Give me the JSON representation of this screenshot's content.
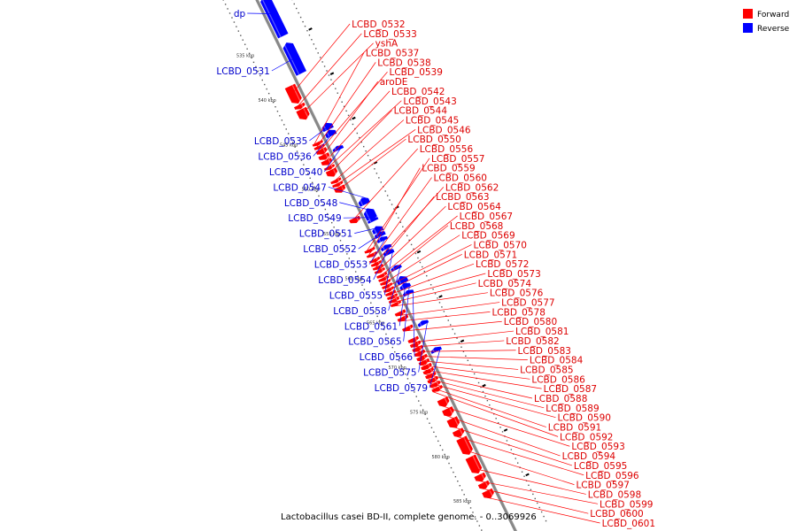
{
  "caption": "Lactobacillus casei BD-II, complete genome. - 0..3069926",
  "legend": [
    {
      "label": "Forward",
      "color": "#ff0000"
    },
    {
      "label": "Reverse",
      "color": "#0000ff"
    }
  ],
  "colors": {
    "forward": "#ff0000",
    "reverse": "#0000ff",
    "backbone": "#888888"
  },
  "kbp_ticks": [
    {
      "label": "535 kbp",
      "kb": 535
    },
    {
      "label": "540 kbp",
      "kb": 540
    },
    {
      "label": "545 kbp",
      "kb": 545
    },
    {
      "label": "550 kbp",
      "kb": 550
    },
    {
      "label": "555 kbp",
      "kb": 555
    },
    {
      "label": "560 kbp",
      "kb": 560
    },
    {
      "label": "565 kbp",
      "kb": 565
    },
    {
      "label": "570 kbp",
      "kb": 570
    },
    {
      "label": "575 kbp",
      "kb": 575
    },
    {
      "label": "580 kbp",
      "kb": 580
    },
    {
      "label": "585 kbp",
      "kb": 585
    }
  ],
  "reverse_genes": [
    {
      "name": "dp",
      "start": 530.0,
      "end": 534.4
    },
    {
      "name": "LCBD_0531",
      "start": 535.2,
      "end": 538.6
    },
    {
      "name": "LCBD_0535",
      "start": 544.2,
      "end": 544.9
    },
    {
      "name": "LCBD_0536",
      "start": 545.0,
      "end": 545.6
    },
    {
      "name": "LCBD_0540",
      "start": 546.8,
      "end": 547.2
    },
    {
      "name": "LCBD_0547",
      "start": 552.6,
      "end": 553.3
    },
    {
      "name": "LCBD_0548",
      "start": 553.8,
      "end": 554.9
    },
    {
      "name": "LCBD_0549",
      "start": 554.9,
      "end": 555.2
    },
    {
      "name": "LCBD_0551",
      "start": 555.8,
      "end": 556.4
    },
    {
      "name": "LCBD_0552",
      "start": 556.4,
      "end": 556.9
    },
    {
      "name": "LCBD_0553",
      "start": 557.0,
      "end": 557.4
    },
    {
      "name": "LCBD_0554",
      "start": 557.9,
      "end": 558.3
    },
    {
      "name": "LCBD_0555",
      "start": 558.4,
      "end": 558.9
    },
    {
      "name": "LCBD_0558",
      "start": 560.2,
      "end": 560.6
    },
    {
      "name": "LCBD_0561",
      "start": 561.4,
      "end": 562.1
    },
    {
      "name": "LCBD_0565",
      "start": 562.2,
      "end": 562.7
    },
    {
      "name": "LCBD_0566",
      "start": 563.0,
      "end": 563.4
    },
    {
      "name": "LCBD_0575",
      "start": 566.4,
      "end": 566.8
    },
    {
      "name": "LCBD_0579",
      "start": 569.4,
      "end": 569.8
    }
  ],
  "forward_genes": [
    {
      "name": "LCBD_0532",
      "start": 539.3,
      "end": 541.2
    },
    {
      "name": "LCBD_0533",
      "start": 541.4,
      "end": 541.8
    },
    {
      "name": "yshA",
      "start": 541.9,
      "end": 543.0
    },
    {
      "name": "LCBD_0537",
      "start": 545.6,
      "end": 545.9
    },
    {
      "name": "LCBD_0538",
      "start": 546.0,
      "end": 546.3
    },
    {
      "name": "LCBD_0539",
      "start": 546.4,
      "end": 546.9
    },
    {
      "name": "aroDE",
      "start": 547.0,
      "end": 547.5
    },
    {
      "name": "LCBD_0542",
      "start": 547.6,
      "end": 548.1
    },
    {
      "name": "LCBD_0543",
      "start": 548.3,
      "end": 548.6
    },
    {
      "name": "LCBD_0544",
      "start": 548.7,
      "end": 549.4
    },
    {
      "name": "LCBD_0545",
      "start": 549.8,
      "end": 550.1
    },
    {
      "name": "LCBD_0546",
      "start": 550.2,
      "end": 550.5
    },
    {
      "name": "LCBD_0550",
      "start": 550.6,
      "end": 551.2
    },
    {
      "name": "LCBD_0556",
      "start": 554.1,
      "end": 554.6
    },
    {
      "name": "LCBD_0557",
      "start": 557.6,
      "end": 557.9
    },
    {
      "name": "LCBD_0559",
      "start": 558.1,
      "end": 558.4
    },
    {
      "name": "LCBD_0560",
      "start": 558.7,
      "end": 559.0
    },
    {
      "name": "LCBD_0562",
      "start": 559.1,
      "end": 559.4
    },
    {
      "name": "LCBD_0563",
      "start": 559.5,
      "end": 559.8
    },
    {
      "name": "LCBD_0564",
      "start": 559.9,
      "end": 560.2
    },
    {
      "name": "LCBD_0567",
      "start": 560.4,
      "end": 560.7
    },
    {
      "name": "LCBD_0568",
      "start": 560.8,
      "end": 561.1
    },
    {
      "name": "LCBD_0569",
      "start": 561.2,
      "end": 561.5
    },
    {
      "name": "LCBD_0570",
      "start": 561.6,
      "end": 561.9
    },
    {
      "name": "LCBD_0571",
      "start": 562.0,
      "end": 562.3
    },
    {
      "name": "LCBD_0572",
      "start": 562.4,
      "end": 562.7
    },
    {
      "name": "LCBD_0573",
      "start": 562.8,
      "end": 563.1
    },
    {
      "name": "LCBD_0574",
      "start": 563.2,
      "end": 563.5
    },
    {
      "name": "LCBD_0576",
      "start": 563.6,
      "end": 563.9
    },
    {
      "name": "LCBD_0577",
      "start": 564.6,
      "end": 565.0
    },
    {
      "name": "LCBD_0578",
      "start": 565.2,
      "end": 565.6
    },
    {
      "name": "LCBD_0580",
      "start": 566.3,
      "end": 566.7
    },
    {
      "name": "LCBD_0581",
      "start": 567.6,
      "end": 568.0
    },
    {
      "name": "LCBD_0582",
      "start": 568.1,
      "end": 568.5
    },
    {
      "name": "LCBD_0583",
      "start": 568.6,
      "end": 569.0
    },
    {
      "name": "LCBD_0584",
      "start": 569.1,
      "end": 569.5
    },
    {
      "name": "LCBD_0585",
      "start": 569.6,
      "end": 570.0
    },
    {
      "name": "LCBD_0586",
      "start": 570.1,
      "end": 570.5
    },
    {
      "name": "LCBD_0587",
      "start": 570.6,
      "end": 571.0
    },
    {
      "name": "LCBD_0588",
      "start": 571.1,
      "end": 571.5
    },
    {
      "name": "LCBD_0589",
      "start": 571.6,
      "end": 572.0
    },
    {
      "name": "LCBD_0590",
      "start": 572.1,
      "end": 572.5
    },
    {
      "name": "LCBD_0591",
      "start": 572.6,
      "end": 573.0
    },
    {
      "name": "LCBD_0592",
      "start": 573.1,
      "end": 573.5
    },
    {
      "name": "LCBD_0593",
      "start": 574.4,
      "end": 575.2
    },
    {
      "name": "LCBD_0594",
      "start": 575.5,
      "end": 576.3
    },
    {
      "name": "LCBD_0595",
      "start": 576.6,
      "end": 577.6
    },
    {
      "name": "LCBD_0596",
      "start": 577.9,
      "end": 578.6
    },
    {
      "name": "LCBD_0597",
      "start": 578.8,
      "end": 580.6
    },
    {
      "name": "LCBD_0598",
      "start": 580.9,
      "end": 582.7
    },
    {
      "name": "LCBD_0599",
      "start": 582.9,
      "end": 583.6
    },
    {
      "name": "LCBD_0600",
      "start": 583.8,
      "end": 584.4
    },
    {
      "name": "LCBD_0601",
      "start": 584.7,
      "end": 585.5
    }
  ]
}
